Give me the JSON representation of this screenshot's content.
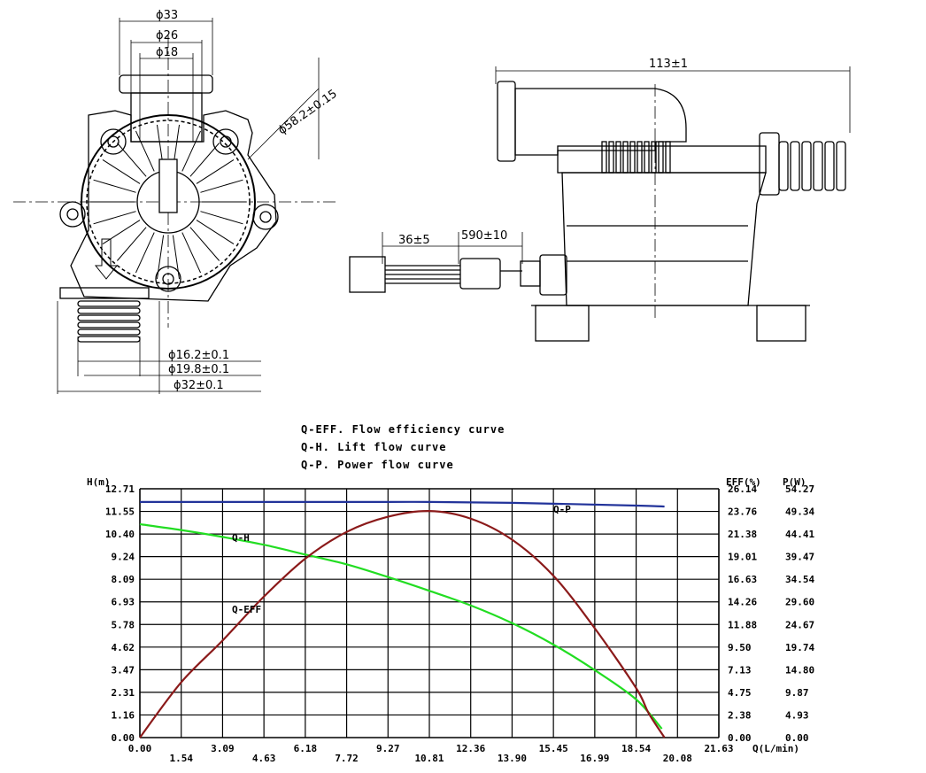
{
  "drawing": {
    "dims": {
      "d33": "ϕ33",
      "d26": "ϕ26",
      "d18": "ϕ18",
      "d58": "ϕ58.2±0.15",
      "d16": "ϕ16.2±0.1",
      "d19": "ϕ19.8±0.1",
      "d32": "ϕ32±0.1",
      "len113": "113±1",
      "len36": "36±5",
      "len590": "590±10"
    }
  },
  "chart_data": {
    "type": "line",
    "legend": [
      "Q-EFF. Flow efficiency curve",
      "Q-H. Lift flow curve",
      "Q-P. Power flow curve"
    ],
    "x_ticks": [
      "0.00",
      "1.54",
      "3.09",
      "4.63",
      "6.18",
      "7.72",
      "9.27",
      "10.81",
      "12.36",
      "13.90",
      "15.45",
      "16.99",
      "18.54",
      "20.08",
      "21.63"
    ],
    "x_axis_label": "Q(L/min)",
    "left_axis_label": "H(m)",
    "left_ticks": [
      "12.71",
      "11.55",
      "10.40",
      "9.24",
      "8.09",
      "6.93",
      "5.78",
      "4.62",
      "3.47",
      "2.31",
      "1.16",
      "0.00"
    ],
    "eff_axis_label": "EFF(%)",
    "eff_ticks": [
      "26.14",
      "23.76",
      "21.38",
      "19.01",
      "16.63",
      "14.26",
      "11.88",
      "9.50",
      "7.13",
      "4.75",
      "2.38",
      "0.00"
    ],
    "power_axis_label": "P(W)",
    "power_ticks": [
      "54.27",
      "49.34",
      "44.41",
      "39.47",
      "34.54",
      "29.60",
      "24.67",
      "19.74",
      "14.80",
      "9.87",
      "4.93",
      "0.00"
    ],
    "xlim": [
      0,
      21.63
    ],
    "ylim": [
      0,
      12.71
    ],
    "eff_lim": [
      0,
      26.14
    ],
    "power_lim": [
      0,
      54.27
    ],
    "grid": true,
    "series": [
      {
        "name": "Q-H",
        "axis": "H",
        "color": "#22dd22",
        "x": [
          0,
          1.54,
          3.09,
          4.63,
          6.18,
          7.72,
          9.27,
          10.81,
          12.36,
          13.9,
          15.45,
          16.99,
          18.54,
          19.5
        ],
        "y": [
          10.9,
          10.6,
          10.25,
          9.85,
          9.35,
          8.85,
          8.2,
          7.5,
          6.75,
          5.85,
          4.75,
          3.45,
          1.95,
          0.45
        ]
      },
      {
        "name": "Q-EFF",
        "axis": "EFF",
        "color": "#8b1a1a",
        "x": [
          0,
          1.54,
          3.09,
          4.63,
          6.18,
          7.72,
          9.27,
          10.81,
          12.36,
          13.9,
          15.45,
          16.99,
          18.54,
          19.0,
          19.6
        ],
        "y": [
          0,
          5.8,
          10.2,
          14.8,
          18.8,
          21.6,
          23.2,
          23.8,
          23.0,
          20.8,
          17.0,
          11.5,
          5.2,
          2.6,
          0
        ]
      },
      {
        "name": "Q-P",
        "axis": "P",
        "color": "#22339a",
        "x": [
          0,
          4.63,
          9.27,
          10.81,
          13.9,
          18.54,
          19.6
        ],
        "y": [
          51.4,
          51.4,
          51.4,
          51.4,
          51.2,
          50.6,
          50.4
        ]
      }
    ],
    "annotations": [
      "Q-H",
      "Q-EFF",
      "Q-P"
    ]
  }
}
